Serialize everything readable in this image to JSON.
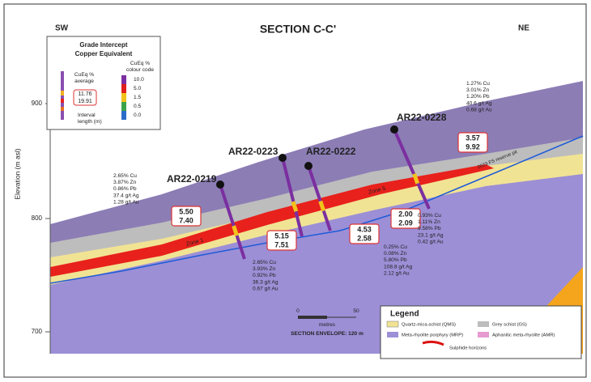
{
  "header": {
    "left": "SW",
    "title": "SECTION C-C'",
    "right": "NE"
  },
  "inset": {
    "title": [
      "Grade Intercept",
      "Copper Equivalent"
    ],
    "average_label": [
      "CuEq %",
      "average"
    ],
    "average": "11.76",
    "interval": "19.91",
    "interval_label": [
      "Interval",
      "length (m)"
    ],
    "colour_code_label": [
      "CuEq %",
      "colour code"
    ],
    "colour_code": [
      "10.0",
      "5.0",
      "1.5",
      "0.5",
      "0.0"
    ]
  },
  "axis": {
    "label": "Elevation (m asl)",
    "ticks": [
      "900",
      "800",
      "700"
    ]
  },
  "holes": [
    "AR22-0219",
    "AR22-0223",
    "AR22-0222",
    "AR22-0228"
  ],
  "intercepts": [
    {
      "average": "5.50",
      "length": "7.40"
    },
    {
      "average": "5.15",
      "length": "7.51"
    },
    {
      "average": "4.53",
      "length": "2.58"
    },
    {
      "average": "2.00",
      "length": "2.09"
    },
    {
      "average": "3.57",
      "length": "9.92"
    }
  ],
  "assays": [
    [
      "2.65% Cu",
      "3.87% Zn",
      "0.86% Pb",
      "37.4 g/t Ag",
      "1.28 g/t Au"
    ],
    [
      "2.65% Cu",
      "3.93% Zn",
      "0.92% Pb",
      "36.3 g/t Ag",
      "0.67 g/t Au"
    ],
    [
      "0.25% Cu",
      "0.08% Zn",
      "5.80% Pb",
      "108.8 g/t Ag",
      "2.12 g/t Au"
    ],
    [
      "0.93% Cu",
      "1.11% Zn",
      "9.58% Pb",
      "23.1 g/t Ag",
      "0.42 g/t Au"
    ],
    [
      "1.27% Cu",
      "3.01% Zn",
      "1.20% Pb",
      "40.6 g/t Ag",
      "0.68 g/t Au"
    ]
  ],
  "zones": [
    "Zone 1",
    "Zone 5"
  ],
  "pit_label": "2023 FS reserve pit",
  "scale": {
    "start": "0",
    "end": "50",
    "unit": "metres",
    "envelope": "SECTION ENVELOPE: 120 m"
  },
  "legend": {
    "title": "Legend",
    "items": [
      "Quartz-mica-schist (QMS)",
      "Grey schist (GS)",
      "Meta-rhyolite porphyry (MRP)",
      "Aphanitic meta-rhyolite (AMR)",
      "Sulphide horizons"
    ]
  }
}
